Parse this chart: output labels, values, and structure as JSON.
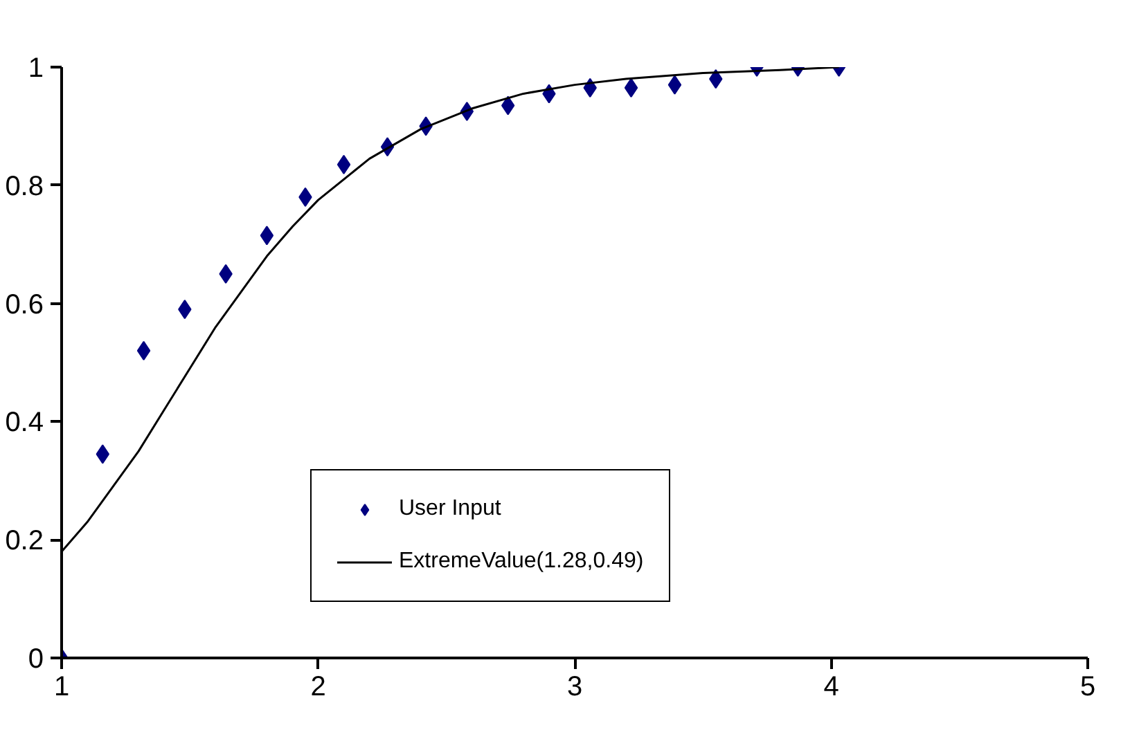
{
  "chart_data": {
    "type": "scatter",
    "xlim": [
      1,
      5
    ],
    "ylim": [
      0,
      1
    ],
    "xticks": [
      1,
      2,
      3,
      4,
      5
    ],
    "yticks": [
      0,
      0.2,
      0.4,
      0.6,
      0.8,
      1
    ],
    "grid": false,
    "legend": "bottom",
    "series": [
      {
        "name": "User Input",
        "marker": "diamond",
        "color": "#000080",
        "x": [
          1,
          1.16,
          1.32,
          1.48,
          1.64,
          1.8,
          1.95,
          2.1,
          2.27,
          2.42,
          2.58,
          2.74,
          2.9,
          3.06,
          3.22,
          3.39,
          3.55,
          3.71,
          3.87,
          4.03
        ],
        "values": [
          0,
          0.345,
          0.52,
          0.59,
          0.65,
          0.715,
          0.78,
          0.835,
          0.865,
          0.9,
          0.925,
          0.935,
          0.955,
          0.965,
          0.965,
          0.97,
          0.98,
          1,
          1,
          1
        ]
      },
      {
        "name": "ExtremeValue(1.28,0.49)",
        "type": "line",
        "color": "#000000",
        "line_style": "solid",
        "x": [
          1,
          1.1,
          1.2,
          1.3,
          1.4,
          1.5,
          1.6,
          1.7,
          1.8,
          1.9,
          2.0,
          2.2,
          2.4,
          2.6,
          2.8,
          3.0,
          3.2,
          3.5,
          3.8,
          4.03
        ],
        "values": [
          0.18,
          0.23,
          0.29,
          0.35,
          0.42,
          0.49,
          0.56,
          0.62,
          0.68,
          0.73,
          0.775,
          0.845,
          0.895,
          0.93,
          0.955,
          0.97,
          0.98,
          0.99,
          0.995,
          1
        ]
      }
    ]
  }
}
